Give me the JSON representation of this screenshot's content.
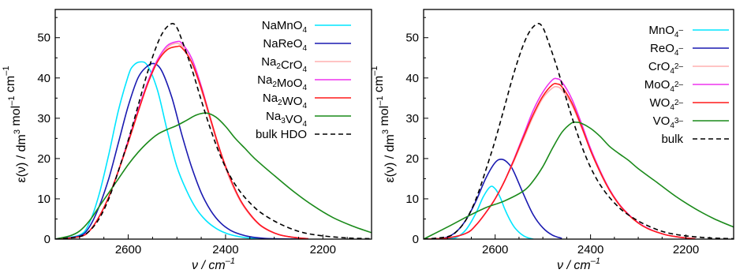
{
  "chart_data": [
    {
      "type": "line",
      "xlabel": "ν / cm⁻¹",
      "ylabel": "ε(ν) / dm³ mol⁻¹ cm⁻¹",
      "xlim": [
        2750,
        2100
      ],
      "ylim": [
        0,
        57
      ],
      "x_ticks": [
        2600,
        2400,
        2200
      ],
      "y_ticks": [
        0,
        10,
        20,
        30,
        40,
        50
      ],
      "grid": false,
      "legend": "top-right",
      "series": [
        {
          "name": "NaMnO₄",
          "color": "#00e5ff",
          "dash": "solid",
          "x": [
            2750,
            2700,
            2680,
            2660,
            2640,
            2620,
            2600,
            2590,
            2575,
            2560,
            2540,
            2520,
            2500,
            2480,
            2460,
            2440,
            2420,
            2400,
            2380,
            2360,
            2340,
            2300,
            2250
          ],
          "y": [
            0,
            1,
            4,
            11,
            21,
            32,
            40.5,
            43,
            44,
            43,
            37,
            27,
            18,
            12,
            7.5,
            4.6,
            2.7,
            1.5,
            0.8,
            0.4,
            0.2,
            0.05,
            0
          ]
        },
        {
          "name": "NaReO₄",
          "color": "#1a1ab0",
          "dash": "solid",
          "x": [
            2750,
            2700,
            2680,
            2660,
            2640,
            2620,
            2600,
            2580,
            2560,
            2545,
            2530,
            2510,
            2490,
            2470,
            2450,
            2430,
            2410,
            2390,
            2370,
            2350,
            2320,
            2300,
            2250
          ],
          "y": [
            0,
            0.8,
            3,
            8,
            15,
            24,
            33,
            40,
            43,
            43.5,
            41.5,
            35,
            26,
            18,
            11.5,
            7,
            4,
            2.2,
            1.2,
            0.6,
            0.2,
            0.1,
            0
          ]
        },
        {
          "name": "Na₂CrO₄",
          "color": "#ffb0b0",
          "dash": "solid",
          "x": [
            2750,
            2700,
            2680,
            2660,
            2640,
            2620,
            2600,
            2580,
            2560,
            2540,
            2520,
            2505,
            2490,
            2470,
            2450,
            2430,
            2410,
            2390,
            2370,
            2350,
            2330,
            2310,
            2290,
            2270,
            2250,
            2230
          ],
          "y": [
            0,
            0.6,
            2,
            5.5,
            10.5,
            17,
            24,
            31.5,
            38.5,
            44,
            47.5,
            48.5,
            48,
            44,
            37,
            29,
            21,
            14.5,
            9.5,
            6,
            3.5,
            2,
            1.1,
            0.6,
            0.3,
            0.1
          ]
        },
        {
          "name": "Na₂MoO₄",
          "color": "#ee33ee",
          "dash": "solid",
          "x": [
            2750,
            2700,
            2680,
            2660,
            2640,
            2620,
            2600,
            2580,
            2560,
            2540,
            2520,
            2500,
            2490,
            2470,
            2450,
            2430,
            2410,
            2390,
            2370,
            2350,
            2330,
            2310,
            2290,
            2270,
            2250,
            2230
          ],
          "y": [
            0,
            0.6,
            2,
            5.5,
            10.5,
            17,
            24.5,
            32,
            39,
            44.5,
            48,
            49,
            48.6,
            45,
            38,
            29.5,
            21.5,
            15,
            9.8,
            6.2,
            3.6,
            2.1,
            1.1,
            0.6,
            0.3,
            0.1
          ]
        },
        {
          "name": "Na₂WO₄",
          "color": "#ff1a1a",
          "dash": "solid",
          "x": [
            2750,
            2700,
            2680,
            2660,
            2640,
            2620,
            2600,
            2580,
            2560,
            2540,
            2520,
            2500,
            2490,
            2470,
            2450,
            2430,
            2410,
            2390,
            2370,
            2350,
            2330,
            2310,
            2290,
            2270,
            2250,
            2230
          ],
          "y": [
            0,
            0.6,
            2,
            5.5,
            10.5,
            17,
            24,
            31.5,
            38.5,
            44,
            47,
            47.8,
            47.5,
            44,
            37.5,
            29.5,
            21.5,
            15,
            9.8,
            6.2,
            3.6,
            2.1,
            1.1,
            0.6,
            0.3,
            0.1
          ]
        },
        {
          "name": "Na₃VO₄",
          "color": "#1a8a1a",
          "dash": "solid",
          "x": [
            2750,
            2720,
            2700,
            2680,
            2660,
            2640,
            2620,
            2600,
            2580,
            2560,
            2540,
            2520,
            2500,
            2480,
            2460,
            2440,
            2420,
            2400,
            2380,
            2360,
            2340,
            2300,
            2260,
            2220,
            2180,
            2140,
            2100
          ],
          "y": [
            0,
            0.8,
            2,
            4.5,
            8,
            11.5,
            15,
            18.5,
            21.5,
            24,
            26,
            27.2,
            28.2,
            29.5,
            30.8,
            31.3,
            30.3,
            28,
            25,
            22.5,
            20,
            15.8,
            11.8,
            8.3,
            5.4,
            3.3,
            1.6
          ]
        },
        {
          "name": "bulk HDO",
          "color": "#000000",
          "dash": "dashed",
          "x": [
            2750,
            2700,
            2680,
            2660,
            2640,
            2620,
            2600,
            2580,
            2560,
            2540,
            2525,
            2510,
            2500,
            2490,
            2470,
            2450,
            2430,
            2410,
            2390,
            2370,
            2350,
            2330,
            2300,
            2270,
            2240,
            2200,
            2150,
            2100
          ],
          "y": [
            0,
            0.6,
            2,
            5,
            10,
            17,
            24.5,
            33,
            41.5,
            48.5,
            52,
            53.5,
            52.5,
            49.5,
            42.5,
            34.5,
            27,
            20.5,
            15.5,
            11.8,
            9,
            6.8,
            4.5,
            2.8,
            1.6,
            0.8,
            0.3,
            0.1
          ]
        }
      ]
    },
    {
      "type": "line",
      "xlabel": "ν / cm⁻¹",
      "ylabel": "ε(ν) / dm³ mol⁻¹ cm⁻¹",
      "xlim": [
        2750,
        2100
      ],
      "ylim": [
        0,
        57
      ],
      "x_ticks": [
        2600,
        2400,
        2200
      ],
      "y_ticks": [
        0,
        10,
        20,
        30,
        40,
        50
      ],
      "grid": false,
      "legend": "top-right",
      "series": [
        {
          "name": "MnO₄⁻",
          "color": "#00e5ff",
          "dash": "solid",
          "x": [
            2700,
            2680,
            2660,
            2640,
            2625,
            2610,
            2600,
            2590,
            2580,
            2570,
            2560,
            2550,
            2540,
            2530,
            2520
          ],
          "y": [
            0,
            0.5,
            2.5,
            6.5,
            10.5,
            13,
            12.5,
            10.5,
            7.5,
            5,
            3,
            1.7,
            0.8,
            0.3,
            0
          ]
        },
        {
          "name": "ReO₄⁻",
          "color": "#1a1ab0",
          "dash": "solid",
          "x": [
            2720,
            2700,
            2680,
            2660,
            2640,
            2620,
            2600,
            2585,
            2570,
            2560,
            2540,
            2520,
            2500,
            2480,
            2460
          ],
          "y": [
            0,
            0.5,
            2,
            5,
            9.5,
            15,
            19,
            19.8,
            18.5,
            16.5,
            11,
            6,
            2.8,
            1,
            0.2
          ]
        },
        {
          "name": "CrO₄²⁻",
          "color": "#ffb0b0",
          "dash": "solid",
          "x": [
            2750,
            2700,
            2660,
            2640,
            2620,
            2600,
            2580,
            2560,
            2540,
            2520,
            2500,
            2480,
            2470,
            2460,
            2440,
            2420,
            2400,
            2380,
            2360,
            2340,
            2320,
            2300,
            2280,
            2260,
            2240,
            2220,
            2200,
            2180
          ],
          "y": [
            0,
            0.3,
            1.5,
            3.5,
            6.5,
            10,
            14.5,
            19.5,
            25,
            30.5,
            35,
            37.5,
            37.8,
            37,
            33.5,
            28,
            22,
            16.5,
            12,
            8.5,
            6,
            4,
            2.6,
            1.7,
            1,
            0.6,
            0.3,
            0.1
          ]
        },
        {
          "name": "MoO₄²⁻",
          "color": "#ee33ee",
          "dash": "solid",
          "x": [
            2750,
            2700,
            2660,
            2640,
            2620,
            2600,
            2580,
            2560,
            2540,
            2520,
            2500,
            2480,
            2470,
            2460,
            2440,
            2420,
            2400,
            2380,
            2360,
            2340,
            2320,
            2300,
            2280,
            2260,
            2240,
            2220,
            2200,
            2180
          ],
          "y": [
            0,
            0.3,
            1.5,
            3.5,
            6.5,
            10,
            14.5,
            20,
            26,
            32,
            36.5,
            39.5,
            39.8,
            39,
            35,
            29,
            22.5,
            17,
            12.3,
            8.7,
            6.1,
            4.1,
            2.7,
            1.7,
            1,
            0.6,
            0.3,
            0.1
          ]
        },
        {
          "name": "WO₄²⁻",
          "color": "#ff1a1a",
          "dash": "solid",
          "x": [
            2750,
            2700,
            2660,
            2640,
            2620,
            2600,
            2580,
            2560,
            2540,
            2520,
            2500,
            2480,
            2470,
            2460,
            2440,
            2420,
            2400,
            2380,
            2360,
            2340,
            2320,
            2300,
            2280,
            2260,
            2240,
            2220,
            2200,
            2180
          ],
          "y": [
            0,
            0.3,
            1.5,
            3.5,
            6.5,
            10,
            14.5,
            19.8,
            25.5,
            31,
            35.5,
            38.3,
            38.5,
            37.8,
            34,
            28.3,
            22,
            16.7,
            12.1,
            8.6,
            6,
            4,
            2.6,
            1.7,
            1,
            0.6,
            0.3,
            0.1
          ]
        },
        {
          "name": "VO₄³⁻",
          "color": "#1a8a1a",
          "dash": "solid",
          "x": [
            2750,
            2700,
            2660,
            2620,
            2580,
            2540,
            2520,
            2500,
            2480,
            2460,
            2440,
            2430,
            2420,
            2400,
            2380,
            2360,
            2340,
            2320,
            2300,
            2260,
            2220,
            2180,
            2140,
            2100
          ],
          "y": [
            0,
            3,
            5.5,
            7.8,
            9.5,
            12,
            14.5,
            18,
            22.5,
            26.5,
            28.8,
            29,
            28.8,
            27.5,
            25.5,
            23,
            21.2,
            19.5,
            17.5,
            14,
            10.5,
            7.5,
            5,
            3
          ]
        },
        {
          "name": "bulk",
          "color": "#000000",
          "dash": "dashed",
          "x": [
            2750,
            2700,
            2680,
            2660,
            2640,
            2620,
            2600,
            2580,
            2560,
            2540,
            2525,
            2510,
            2500,
            2490,
            2470,
            2450,
            2430,
            2410,
            2390,
            2370,
            2350,
            2330,
            2300,
            2270,
            2240,
            2200,
            2150,
            2100
          ],
          "y": [
            0,
            0.6,
            2,
            5,
            10,
            17,
            24.5,
            33,
            41.5,
            48.5,
            52,
            53.5,
            52.5,
            49.5,
            42.5,
            34.5,
            27,
            20.5,
            15.5,
            11.8,
            9,
            6.8,
            4.5,
            2.8,
            1.6,
            0.8,
            0.3,
            0.1
          ]
        }
      ]
    }
  ]
}
